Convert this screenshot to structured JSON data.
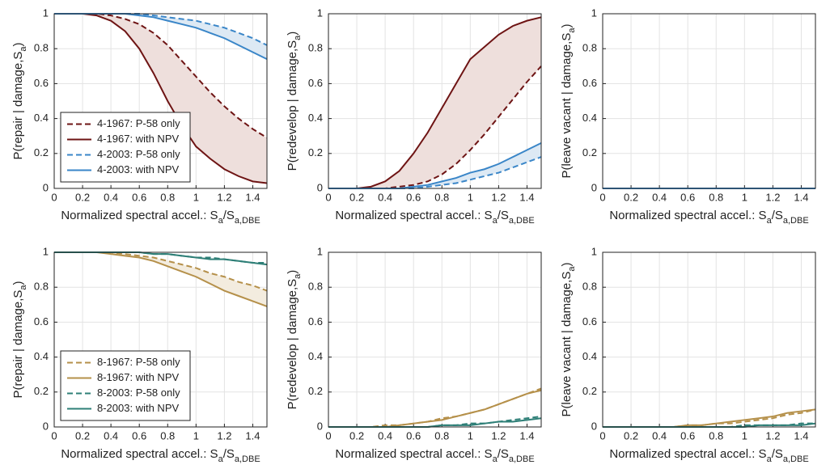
{
  "chart_data": [
    {
      "type": "line",
      "ylabel": [
        "P(repair | damage,S",
        "a",
        ")"
      ],
      "xlabel": [
        "Normalized spectral accel.: S",
        "a",
        "/S",
        "a,DBE"
      ],
      "xlim": [
        0,
        1.5
      ],
      "ylim": [
        0,
        1
      ],
      "xticks": [
        0,
        0.2,
        0.4,
        0.6,
        0.8,
        1,
        1.2,
        1.4
      ],
      "yticks": [
        0,
        0.2,
        0.4,
        0.6,
        0.8,
        1
      ],
      "grid": true,
      "legend": "lower left",
      "x": [
        0,
        0.1,
        0.2,
        0.3,
        0.4,
        0.5,
        0.6,
        0.7,
        0.8,
        0.9,
        1,
        1.1,
        1.2,
        1.3,
        1.4,
        1.5
      ],
      "series": [
        {
          "name": "4-1967: P-58 only",
          "color": "#6e1414",
          "dash": true,
          "values": [
            1,
            1,
            1,
            1,
            0.99,
            0.97,
            0.94,
            0.89,
            0.82,
            0.73,
            0.64,
            0.55,
            0.47,
            0.4,
            0.34,
            0.29
          ]
        },
        {
          "name": "4-1967: with NPV",
          "color": "#6e1414",
          "dash": false,
          "fill_to_previous": "#eedfdc",
          "values": [
            1,
            1,
            1,
            0.99,
            0.96,
            0.9,
            0.8,
            0.66,
            0.5,
            0.36,
            0.24,
            0.17,
            0.11,
            0.07,
            0.04,
            0.03
          ]
        },
        {
          "name": "4-2003: P-58 only",
          "color": "#3a86c8",
          "dash": true,
          "values": [
            1,
            1,
            1,
            1,
            1,
            1,
            1,
            0.99,
            0.98,
            0.97,
            0.96,
            0.94,
            0.92,
            0.89,
            0.86,
            0.82
          ]
        },
        {
          "name": "4-2003: with NPV",
          "color": "#3a86c8",
          "dash": false,
          "fill_to_previous": "#dde9f4",
          "values": [
            1,
            1,
            1,
            1,
            1,
            1,
            0.99,
            0.98,
            0.96,
            0.94,
            0.92,
            0.89,
            0.86,
            0.82,
            0.78,
            0.74
          ]
        }
      ]
    },
    {
      "type": "line",
      "ylabel": [
        "P(redevelop | damage,S",
        "a",
        ")"
      ],
      "xlabel": [
        "Normalized spectral accel.: S",
        "a",
        "/S",
        "a,DBE"
      ],
      "xlim": [
        0,
        1.5
      ],
      "ylim": [
        0,
        1
      ],
      "xticks": [
        0,
        0.2,
        0.4,
        0.6,
        0.8,
        1,
        1.2,
        1.4
      ],
      "yticks": [
        0,
        0.2,
        0.4,
        0.6,
        0.8,
        1
      ],
      "grid": true,
      "x": [
        0,
        0.1,
        0.2,
        0.3,
        0.4,
        0.5,
        0.6,
        0.7,
        0.8,
        0.9,
        1,
        1.1,
        1.2,
        1.3,
        1.4,
        1.5
      ],
      "series": [
        {
          "color": "#6e1414",
          "dash": true,
          "values": [
            0,
            0,
            0,
            0,
            0,
            0.01,
            0.02,
            0.04,
            0.08,
            0.14,
            0.22,
            0.31,
            0.41,
            0.51,
            0.61,
            0.7
          ]
        },
        {
          "color": "#6e1414",
          "dash": false,
          "fill_to_previous": "#eedfdc",
          "values": [
            0,
            0,
            0,
            0.01,
            0.04,
            0.1,
            0.2,
            0.32,
            0.46,
            0.6,
            0.74,
            0.81,
            0.88,
            0.93,
            0.96,
            0.98
          ]
        },
        {
          "color": "#3a86c8",
          "dash": true,
          "values": [
            0,
            0,
            0,
            0,
            0,
            0,
            0,
            0.01,
            0.02,
            0.03,
            0.05,
            0.07,
            0.09,
            0.12,
            0.15,
            0.18
          ]
        },
        {
          "color": "#3a86c8",
          "dash": false,
          "fill_to_previous": "#dde9f4",
          "values": [
            0,
            0,
            0,
            0,
            0,
            0,
            0.01,
            0.02,
            0.04,
            0.06,
            0.09,
            0.11,
            0.14,
            0.18,
            0.22,
            0.26
          ]
        }
      ]
    },
    {
      "type": "line",
      "ylabel": [
        "P(leave vacant | damage,S",
        "a",
        ")"
      ],
      "xlabel": [
        "Normalized spectral accel.: S",
        "a",
        "/S",
        "a,DBE"
      ],
      "xlim": [
        0,
        1.5
      ],
      "ylim": [
        0,
        1
      ],
      "xticks": [
        0,
        0.2,
        0.4,
        0.6,
        0.8,
        1,
        1.2,
        1.4
      ],
      "yticks": [
        0,
        0.2,
        0.4,
        0.6,
        0.8,
        1
      ],
      "grid": true,
      "x": [
        0,
        0.1,
        0.2,
        0.3,
        0.4,
        0.5,
        0.6,
        0.7,
        0.8,
        0.9,
        1,
        1.1,
        1.2,
        1.3,
        1.4,
        1.5
      ],
      "series": [
        {
          "color": "#6e1414",
          "dash": true,
          "values": [
            0,
            0,
            0,
            0,
            0,
            0,
            0,
            0,
            0,
            0,
            0,
            0,
            0,
            0,
            0,
            0
          ]
        },
        {
          "color": "#6e1414",
          "dash": false,
          "values": [
            0,
            0,
            0,
            0,
            0,
            0,
            0,
            0,
            0,
            0,
            0,
            0,
            0,
            0,
            0,
            0
          ]
        },
        {
          "color": "#3a86c8",
          "dash": true,
          "values": [
            0,
            0,
            0,
            0,
            0,
            0,
            0,
            0,
            0,
            0,
            0,
            0,
            0,
            0,
            0,
            0
          ]
        },
        {
          "color": "#3a86c8",
          "dash": false,
          "values": [
            0,
            0,
            0,
            0,
            0,
            0,
            0,
            0,
            0,
            0,
            0,
            0,
            0,
            0,
            0,
            0
          ]
        }
      ]
    },
    {
      "type": "line",
      "ylabel": [
        "P(repair | damage,S",
        "a",
        ")"
      ],
      "xlabel": [
        "Normalized spectral accel.: S",
        "a",
        "/S",
        "a,DBE"
      ],
      "xlim": [
        0,
        1.5
      ],
      "ylim": [
        0,
        1
      ],
      "xticks": [
        0,
        0.2,
        0.4,
        0.6,
        0.8,
        1,
        1.2,
        1.4
      ],
      "yticks": [
        0,
        0.2,
        0.4,
        0.6,
        0.8,
        1
      ],
      "grid": true,
      "legend": "lower left",
      "x": [
        0,
        0.1,
        0.2,
        0.3,
        0.4,
        0.5,
        0.6,
        0.7,
        0.8,
        0.9,
        1,
        1.1,
        1.2,
        1.3,
        1.4,
        1.5
      ],
      "series": [
        {
          "name": "8-1967: P-58 only",
          "color": "#b5904a",
          "dash": true,
          "values": [
            1,
            1,
            1,
            1,
            1,
            0.99,
            0.98,
            0.97,
            0.95,
            0.93,
            0.91,
            0.88,
            0.86,
            0.83,
            0.81,
            0.78
          ]
        },
        {
          "name": "8-1967: with NPV",
          "color": "#b5904a",
          "dash": false,
          "fill_to_previous": "#f3ecdf",
          "values": [
            1,
            1,
            1,
            1,
            0.99,
            0.98,
            0.97,
            0.95,
            0.92,
            0.89,
            0.86,
            0.82,
            0.78,
            0.75,
            0.72,
            0.69
          ]
        },
        {
          "name": "8-2003: P-58 only",
          "color": "#2e7f77",
          "dash": true,
          "values": [
            1,
            1,
            1,
            1,
            1,
            1,
            1,
            0.99,
            0.99,
            0.98,
            0.97,
            0.97,
            0.96,
            0.95,
            0.94,
            0.94
          ]
        },
        {
          "name": "8-2003: with NPV",
          "color": "#2e7f77",
          "dash": false,
          "values": [
            1,
            1,
            1,
            1,
            1,
            1,
            1,
            0.99,
            0.99,
            0.98,
            0.97,
            0.96,
            0.96,
            0.95,
            0.94,
            0.93
          ]
        }
      ]
    },
    {
      "type": "line",
      "ylabel": [
        "P(redevelop | damage,S",
        "a",
        ")"
      ],
      "xlabel": [
        "Normalized spectral accel.: S",
        "a",
        "/S",
        "a,DBE"
      ],
      "xlim": [
        0,
        1.5
      ],
      "ylim": [
        0,
        1
      ],
      "xticks": [
        0,
        0.2,
        0.4,
        0.6,
        0.8,
        1,
        1.2,
        1.4
      ],
      "yticks": [
        0,
        0.2,
        0.4,
        0.6,
        0.8,
        1
      ],
      "grid": true,
      "x": [
        0,
        0.1,
        0.2,
        0.3,
        0.4,
        0.5,
        0.6,
        0.7,
        0.8,
        0.9,
        1,
        1.1,
        1.2,
        1.3,
        1.4,
        1.5
      ],
      "series": [
        {
          "color": "#b5904a",
          "dash": true,
          "values": [
            0,
            0,
            0,
            0,
            0.01,
            0.01,
            0.02,
            0.03,
            0.05,
            0.06,
            0.08,
            0.1,
            0.13,
            0.16,
            0.19,
            0.22
          ]
        },
        {
          "color": "#b5904a",
          "dash": false,
          "values": [
            0,
            0,
            0,
            0,
            0,
            0.01,
            0.02,
            0.03,
            0.04,
            0.06,
            0.08,
            0.1,
            0.13,
            0.16,
            0.19,
            0.21
          ]
        },
        {
          "color": "#2e7f77",
          "dash": true,
          "values": [
            0,
            0,
            0,
            0,
            0,
            0,
            0,
            0,
            0.01,
            0.01,
            0.02,
            0.02,
            0.03,
            0.04,
            0.05,
            0.06
          ]
        },
        {
          "color": "#2e7f77",
          "dash": false,
          "values": [
            0,
            0,
            0,
            0,
            0,
            0,
            0,
            0,
            0.01,
            0.01,
            0.01,
            0.02,
            0.03,
            0.03,
            0.04,
            0.05
          ]
        }
      ]
    },
    {
      "type": "line",
      "ylabel": [
        "P(leave vacant | damage,S",
        "a",
        ")"
      ],
      "xlabel": [
        "Normalized spectral accel.: S",
        "a",
        "/S",
        "a,DBE"
      ],
      "xlim": [
        0,
        1.5
      ],
      "ylim": [
        0,
        1
      ],
      "xticks": [
        0,
        0.2,
        0.4,
        0.6,
        0.8,
        1,
        1.2,
        1.4
      ],
      "yticks": [
        0,
        0.2,
        0.4,
        0.6,
        0.8,
        1
      ],
      "grid": true,
      "x": [
        0,
        0.1,
        0.2,
        0.3,
        0.4,
        0.5,
        0.6,
        0.7,
        0.8,
        0.9,
        1,
        1.1,
        1.2,
        1.3,
        1.4,
        1.5
      ],
      "series": [
        {
          "color": "#b5904a",
          "dash": true,
          "values": [
            0,
            0,
            0,
            0,
            0,
            0,
            0.01,
            0.01,
            0.02,
            0.02,
            0.03,
            0.04,
            0.05,
            0.07,
            0.08,
            0.1
          ]
        },
        {
          "color": "#b5904a",
          "dash": false,
          "values": [
            0,
            0,
            0,
            0,
            0,
            0,
            0.01,
            0.01,
            0.02,
            0.03,
            0.04,
            0.05,
            0.06,
            0.08,
            0.09,
            0.1
          ]
        },
        {
          "color": "#2e7f77",
          "dash": true,
          "values": [
            0,
            0,
            0,
            0,
            0,
            0,
            0,
            0,
            0,
            0,
            0.01,
            0.01,
            0.01,
            0.01,
            0.02,
            0.02
          ]
        },
        {
          "color": "#2e7f77",
          "dash": false,
          "values": [
            0,
            0,
            0,
            0,
            0,
            0,
            0,
            0,
            0,
            0,
            0,
            0.01,
            0.01,
            0.01,
            0.01,
            0.02
          ]
        }
      ]
    }
  ]
}
